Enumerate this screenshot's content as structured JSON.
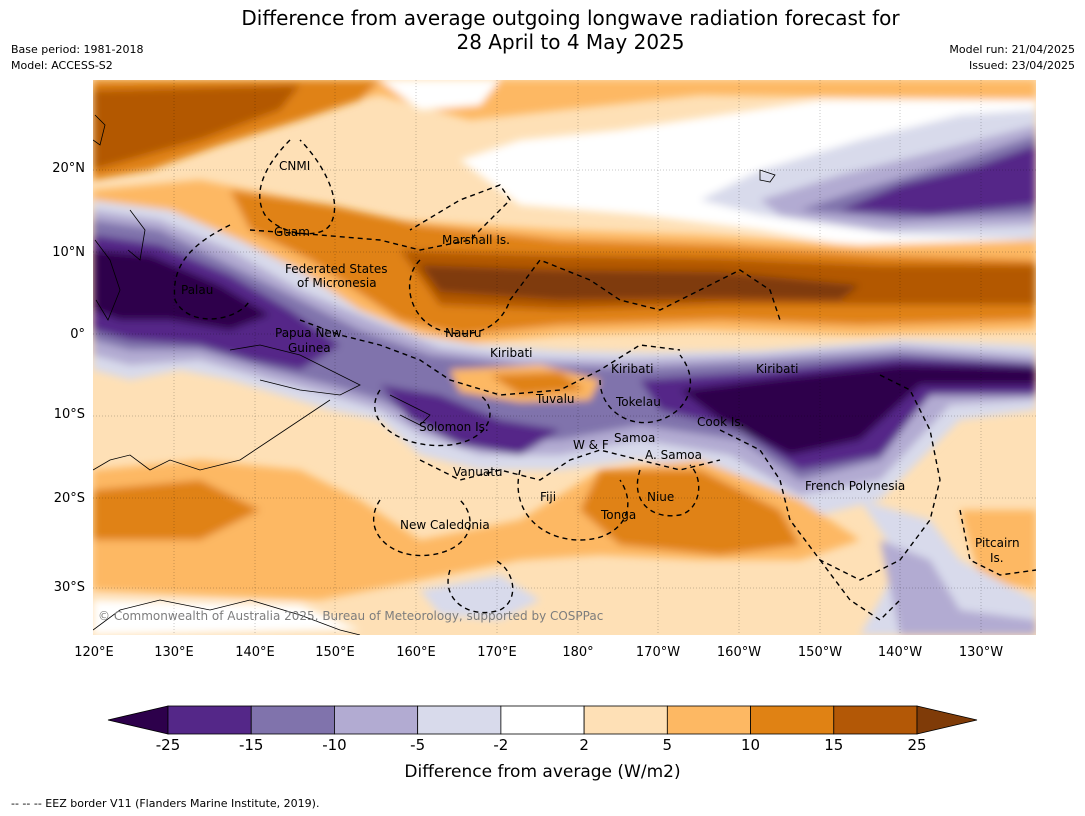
{
  "title": {
    "line1": "Difference from average outgoing longwave radiation forecast for",
    "line2": "28 April to 4 May 2025"
  },
  "meta": {
    "base_period": "Base period: 1981-2018",
    "model": "Model: ACCESS-S2",
    "model_run": "Model run: 21/04/2025",
    "issued": "Issued: 23/04/2025"
  },
  "axes": {
    "lat_labels": [
      "20°N",
      "10°N",
      "0°",
      "10°S",
      "20°S",
      "30°S"
    ],
    "lon_labels": [
      "120°E",
      "130°E",
      "140°E",
      "150°E",
      "160°E",
      "170°E",
      "180°",
      "170°W",
      "160°W",
      "150°W",
      "140°W",
      "130°W"
    ]
  },
  "places": {
    "cnmi": "CNMI",
    "guam": "Guam",
    "marshall": "Marshall Is.",
    "fsm_1": "Federated States",
    "fsm_2": "of Micronesia",
    "palau": "Palau",
    "png_1": "Papua New",
    "png_2": "Guinea",
    "nauru": "Nauru",
    "kiribati_w": "Kiribati",
    "kiribati_c": "Kiribati",
    "kiribati_e": "Kiribati",
    "tuvalu": "Tuvalu",
    "tokelau": "Tokelau",
    "cook": "Cook Is.",
    "solomon": "Solomon Is.",
    "samoa": "Samoa",
    "wf": "W & F",
    "asamoa": "A. Samoa",
    "vanuatu": "Vanuatu",
    "fiji": "Fiji",
    "niue": "Niue",
    "tonga": "Tonga",
    "french_polynesia": "French Polynesia",
    "new_caledonia": "New Caledonia",
    "pitcairn_1": "Pitcairn",
    "pitcairn_2": "Is."
  },
  "copyright": "© Commonwealth of Australia 2025, Bureau of Meteorology, supported by COSPPac",
  "colorbar": {
    "label": "Difference from average (W/m2)",
    "ticks": [
      "-25",
      "-15",
      "-10",
      "-5",
      "-2",
      "2",
      "5",
      "10",
      "15",
      "25"
    ],
    "colors": [
      "#2d004b",
      "#542788",
      "#8073ac",
      "#b2abd2",
      "#d8daeb",
      "#ffffff",
      "#fee0b6",
      "#fdb863",
      "#e08214",
      "#b35806",
      "#7f3b08"
    ]
  },
  "eez_note": "--  --  -- EEZ border V11 (Flanders Marine Institute, 2019)."
}
